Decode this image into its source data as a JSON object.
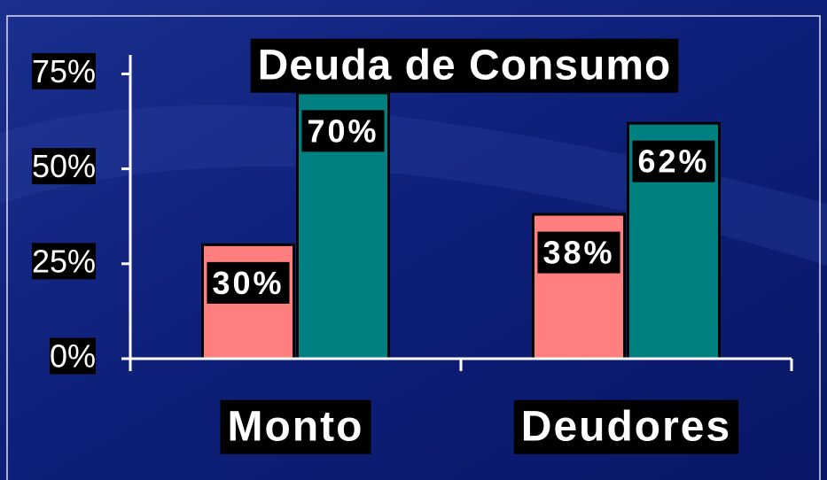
{
  "chart_data": {
    "type": "bar",
    "title": "Deuda de Consumo",
    "categories": [
      "Monto",
      "Deudores"
    ],
    "series": [
      {
        "color": "#ff7f7f",
        "values": [
          30,
          38
        ],
        "value_labels": [
          "30%",
          "38%"
        ]
      },
      {
        "color": "#008080",
        "values": [
          70,
          62
        ],
        "value_labels": [
          "70%",
          "62%"
        ]
      }
    ],
    "ylim": [
      0,
      80
    ],
    "yticks": [
      {
        "value": 0,
        "label": "0%"
      },
      {
        "value": 25,
        "label": "25%"
      },
      {
        "value": 50,
        "label": "50%"
      },
      {
        "value": 75,
        "label": "75%"
      }
    ]
  }
}
